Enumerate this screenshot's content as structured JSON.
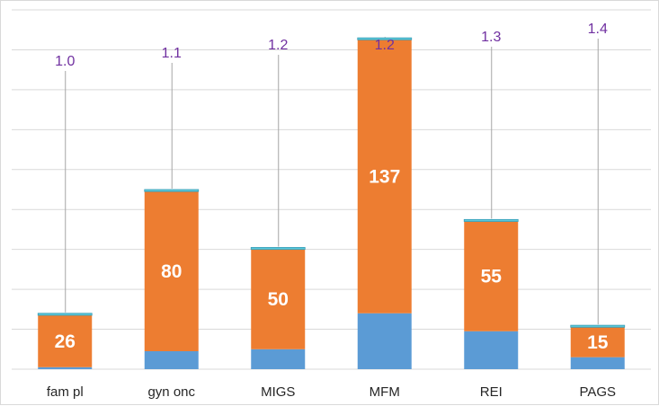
{
  "chart_data": {
    "type": "bar",
    "stacked": true,
    "categories": [
      "fam pl",
      "gyn onc",
      "MIGS",
      "MFM",
      "REI",
      "PAGS"
    ],
    "series": [
      {
        "values": [
          1,
          9,
          10,
          28,
          19,
          6
        ],
        "color": "#5b9bd5"
      },
      {
        "values": [
          26,
          80,
          50,
          137,
          55,
          15
        ],
        "color": "#ed7d31",
        "show_labels": true
      },
      {
        "values": [
          1,
          1,
          1,
          1,
          1,
          1
        ],
        "color": "#5bc8d9"
      }
    ],
    "top_values": [
      1.0,
      1.1,
      1.2,
      1.2,
      1.3,
      1.4
    ],
    "top_value_labels": [
      "1.0",
      "1.1",
      "1.2",
      "1.2",
      "1.3",
      "1.4"
    ],
    "top_value_color": "#7030a0",
    "title": "",
    "xlabel": "",
    "ylabel": "",
    "ylim": [
      0,
      180
    ],
    "grid": true,
    "legend": "none"
  }
}
